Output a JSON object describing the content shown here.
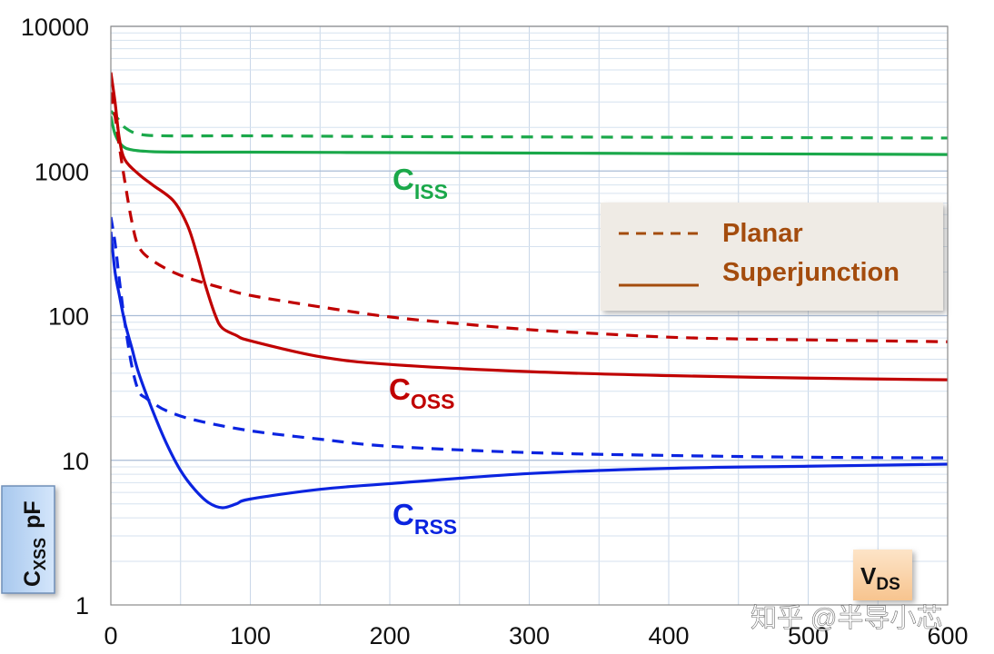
{
  "chart_data": {
    "type": "line",
    "yscale": "log",
    "xlim": [
      0,
      600
    ],
    "ylim": [
      1,
      10000
    ],
    "x_ticks": [
      "0",
      "100",
      "200",
      "300",
      "400",
      "500",
      "600"
    ],
    "y_ticks": [
      "1",
      "10",
      "100",
      "1000",
      "10000"
    ],
    "xlabel": {
      "main": "V",
      "sub": "DS"
    },
    "ylabel": {
      "main": "C",
      "sub": "XSS",
      "unit": "pF"
    },
    "legend": {
      "position": "right",
      "entries": [
        {
          "label": "Planar",
          "style": "dashed"
        },
        {
          "label": "Superjunction",
          "style": "solid"
        }
      ]
    },
    "annotations": [
      {
        "id": "ciss",
        "main": "C",
        "sub": "ISS",
        "color": "#1aa84a"
      },
      {
        "id": "coss",
        "main": "C",
        "sub": "OSS",
        "color": "#c00000"
      },
      {
        "id": "crss",
        "main": "C",
        "sub": "RSS",
        "color": "#0b24e0"
      }
    ],
    "series": [
      {
        "name": "CISS Planar",
        "color": "#1aa84a",
        "style": "dashed",
        "x": [
          0,
          5,
          10,
          20,
          40,
          100,
          200,
          300,
          400,
          500,
          600
        ],
        "y": [
          2600,
          2300,
          2000,
          1800,
          1750,
          1750,
          1730,
          1720,
          1710,
          1700,
          1690
        ]
      },
      {
        "name": "CISS Superjunction",
        "color": "#1aa84a",
        "style": "solid",
        "x": [
          0,
          3,
          8,
          15,
          30,
          60,
          100,
          200,
          300,
          400,
          500,
          600
        ],
        "y": [
          2400,
          1800,
          1500,
          1400,
          1360,
          1350,
          1350,
          1340,
          1330,
          1320,
          1310,
          1300
        ]
      },
      {
        "name": "COSS Planar",
        "color": "#c00000",
        "style": "dashed",
        "x": [
          0,
          3,
          6,
          10,
          15,
          20,
          30,
          50,
          80,
          100,
          150,
          200,
          250,
          300,
          350,
          400,
          450,
          500,
          550,
          600
        ],
        "y": [
          3500,
          2400,
          1500,
          850,
          450,
          300,
          240,
          190,
          155,
          138,
          115,
          98,
          88,
          80,
          75,
          71,
          69,
          68,
          67,
          66
        ]
      },
      {
        "name": "COSS Superjunction",
        "color": "#c00000",
        "style": "solid",
        "x": [
          0,
          3,
          6,
          10,
          20,
          30,
          45,
          55,
          62,
          68,
          75,
          80,
          90,
          100,
          150,
          200,
          300,
          400,
          500,
          600
        ],
        "y": [
          4800,
          3000,
          1700,
          1200,
          950,
          800,
          620,
          420,
          260,
          160,
          100,
          82,
          73,
          67,
          52,
          46,
          41,
          38.5,
          37,
          36
        ]
      },
      {
        "name": "CRSS Planar",
        "color": "#0b24e0",
        "style": "dashed",
        "x": [
          0,
          3,
          6,
          10,
          15,
          20,
          25,
          30,
          40,
          60,
          100,
          150,
          200,
          300,
          400,
          500,
          600
        ],
        "y": [
          480,
          320,
          180,
          90,
          45,
          30,
          27,
          25,
          22,
          19,
          16,
          14,
          12.5,
          11.3,
          10.8,
          10.5,
          10.4
        ]
      },
      {
        "name": "CRSS Superjunction",
        "color": "#0b24e0",
        "style": "solid",
        "x": [
          0,
          3,
          6,
          10,
          15,
          20,
          30,
          40,
          50,
          60,
          70,
          80,
          90,
          100,
          150,
          200,
          300,
          400,
          500,
          600
        ],
        "y": [
          380,
          200,
          140,
          90,
          60,
          40,
          22,
          13,
          8.5,
          6.3,
          5.1,
          4.7,
          5.0,
          5.4,
          6.3,
          6.9,
          8.1,
          8.8,
          9.1,
          9.4
        ]
      }
    ]
  },
  "watermark": "知乎 @半导小芯"
}
